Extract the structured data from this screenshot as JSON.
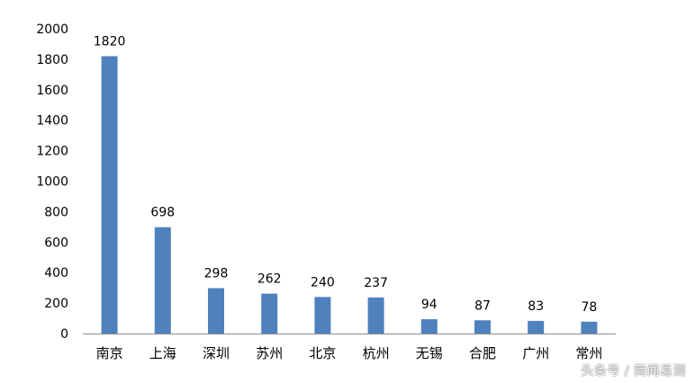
{
  "chart_data": {
    "type": "bar",
    "categories": [
      "南京",
      "上海",
      "深圳",
      "苏州",
      "北京",
      "杭州",
      "无锡",
      "合肥",
      "广州",
      "常州"
    ],
    "values": [
      1820,
      698,
      298,
      262,
      240,
      237,
      94,
      87,
      83,
      78
    ],
    "data_labels": [
      "1820",
      "698",
      "298",
      "262",
      "240",
      "237",
      "94",
      "87",
      "83",
      "78"
    ],
    "ylim": [
      0,
      2000
    ],
    "yticks": [
      0,
      200,
      400,
      600,
      800,
      1000,
      1200,
      1400,
      1600,
      1800,
      2000
    ],
    "grid": false,
    "legend": "none",
    "bar_color": "#4F81BD"
  },
  "watermark": "头条号 / 简闻易测"
}
